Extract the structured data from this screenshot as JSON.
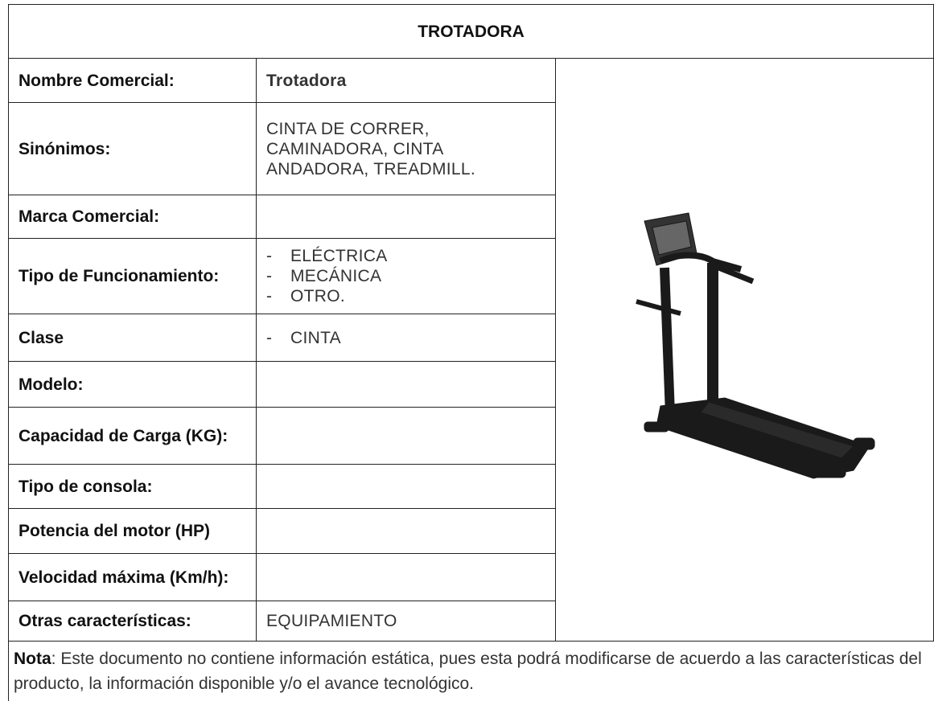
{
  "title": "TROTADORA",
  "rows": [
    {
      "label": "Nombre Comercial:",
      "value": "Trotadora"
    },
    {
      "label": "Sinónimos:",
      "value": "CINTA DE CORRER, CAMINADORA, CINTA ANDADORA, TREADMILL."
    },
    {
      "label": "Marca Comercial:"
    },
    {
      "label": "Tipo de Funcionamiento:",
      "items": [
        "ELÉCTRICA",
        "MECÁNICA",
        "OTRO."
      ]
    },
    {
      "label": "Clase",
      "items": [
        "CINTA"
      ]
    },
    {
      "label": "Modelo:"
    },
    {
      "label": "Capacidad de Carga (KG):"
    },
    {
      "label": "Tipo de consola:"
    },
    {
      "label": "Potencia del motor (HP)"
    },
    {
      "label": "Velocidad máxima (Km/h):"
    },
    {
      "label": "Otras características:",
      "value": "EQUIPAMIENTO"
    }
  ],
  "note": {
    "label": "Nota",
    "text": ": Este documento no contiene información estática, pues esta podrá modificarse de acuerdo a las características del producto, la información disponible y/o el avance tecnológico."
  }
}
